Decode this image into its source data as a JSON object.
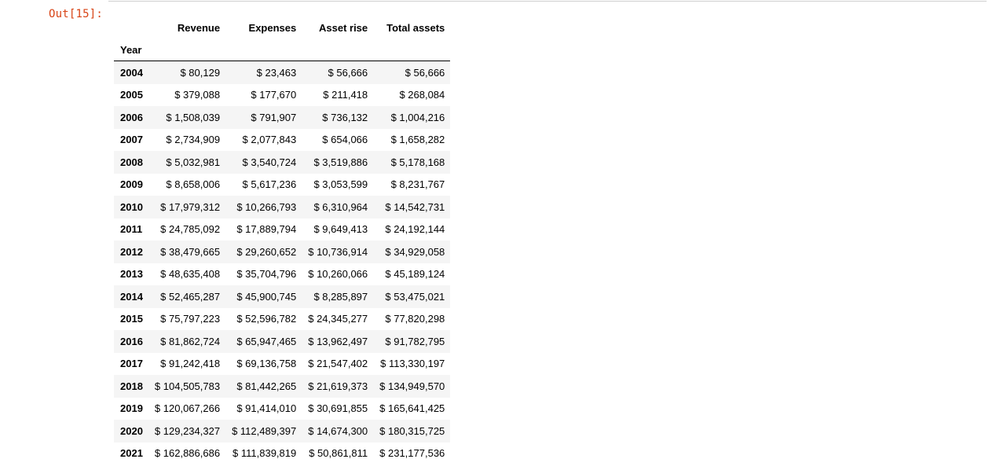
{
  "prompt": "Out[15]:",
  "table": {
    "index_name": "Year",
    "columns": [
      "Revenue",
      "Expenses",
      "Asset rise",
      "Total assets"
    ],
    "rows": [
      {
        "year": "2004",
        "cells": [
          "$ 80,129",
          "$ 23,463",
          "$ 56,666",
          "$ 56,666"
        ]
      },
      {
        "year": "2005",
        "cells": [
          "$ 379,088",
          "$ 177,670",
          "$ 211,418",
          "$ 268,084"
        ]
      },
      {
        "year": "2006",
        "cells": [
          "$ 1,508,039",
          "$ 791,907",
          "$ 736,132",
          "$ 1,004,216"
        ]
      },
      {
        "year": "2007",
        "cells": [
          "$ 2,734,909",
          "$ 2,077,843",
          "$ 654,066",
          "$ 1,658,282"
        ]
      },
      {
        "year": "2008",
        "cells": [
          "$ 5,032,981",
          "$ 3,540,724",
          "$ 3,519,886",
          "$ 5,178,168"
        ]
      },
      {
        "year": "2009",
        "cells": [
          "$ 8,658,006",
          "$ 5,617,236",
          "$ 3,053,599",
          "$ 8,231,767"
        ]
      },
      {
        "year": "2010",
        "cells": [
          "$ 17,979,312",
          "$ 10,266,793",
          "$ 6,310,964",
          "$ 14,542,731"
        ]
      },
      {
        "year": "2011",
        "cells": [
          "$ 24,785,092",
          "$ 17,889,794",
          "$ 9,649,413",
          "$ 24,192,144"
        ]
      },
      {
        "year": "2012",
        "cells": [
          "$ 38,479,665",
          "$ 29,260,652",
          "$ 10,736,914",
          "$ 34,929,058"
        ]
      },
      {
        "year": "2013",
        "cells": [
          "$ 48,635,408",
          "$ 35,704,796",
          "$ 10,260,066",
          "$ 45,189,124"
        ]
      },
      {
        "year": "2014",
        "cells": [
          "$ 52,465,287",
          "$ 45,900,745",
          "$ 8,285,897",
          "$ 53,475,021"
        ]
      },
      {
        "year": "2015",
        "cells": [
          "$ 75,797,223",
          "$ 52,596,782",
          "$ 24,345,277",
          "$ 77,820,298"
        ]
      },
      {
        "year": "2016",
        "cells": [
          "$ 81,862,724",
          "$ 65,947,465",
          "$ 13,962,497",
          "$ 91,782,795"
        ]
      },
      {
        "year": "2017",
        "cells": [
          "$ 91,242,418",
          "$ 69,136,758",
          "$ 21,547,402",
          "$ 113,330,197"
        ]
      },
      {
        "year": "2018",
        "cells": [
          "$ 104,505,783",
          "$ 81,442,265",
          "$ 21,619,373",
          "$ 134,949,570"
        ]
      },
      {
        "year": "2019",
        "cells": [
          "$ 120,067,266",
          "$ 91,414,010",
          "$ 30,691,855",
          "$ 165,641,425"
        ]
      },
      {
        "year": "2020",
        "cells": [
          "$ 129,234,327",
          "$ 112,489,397",
          "$ 14,674,300",
          "$ 180,315,725"
        ]
      },
      {
        "year": "2021",
        "cells": [
          "$ 162,886,686",
          "$ 111,839,819",
          "$ 50,861,811",
          "$ 231,177,536"
        ]
      }
    ]
  }
}
